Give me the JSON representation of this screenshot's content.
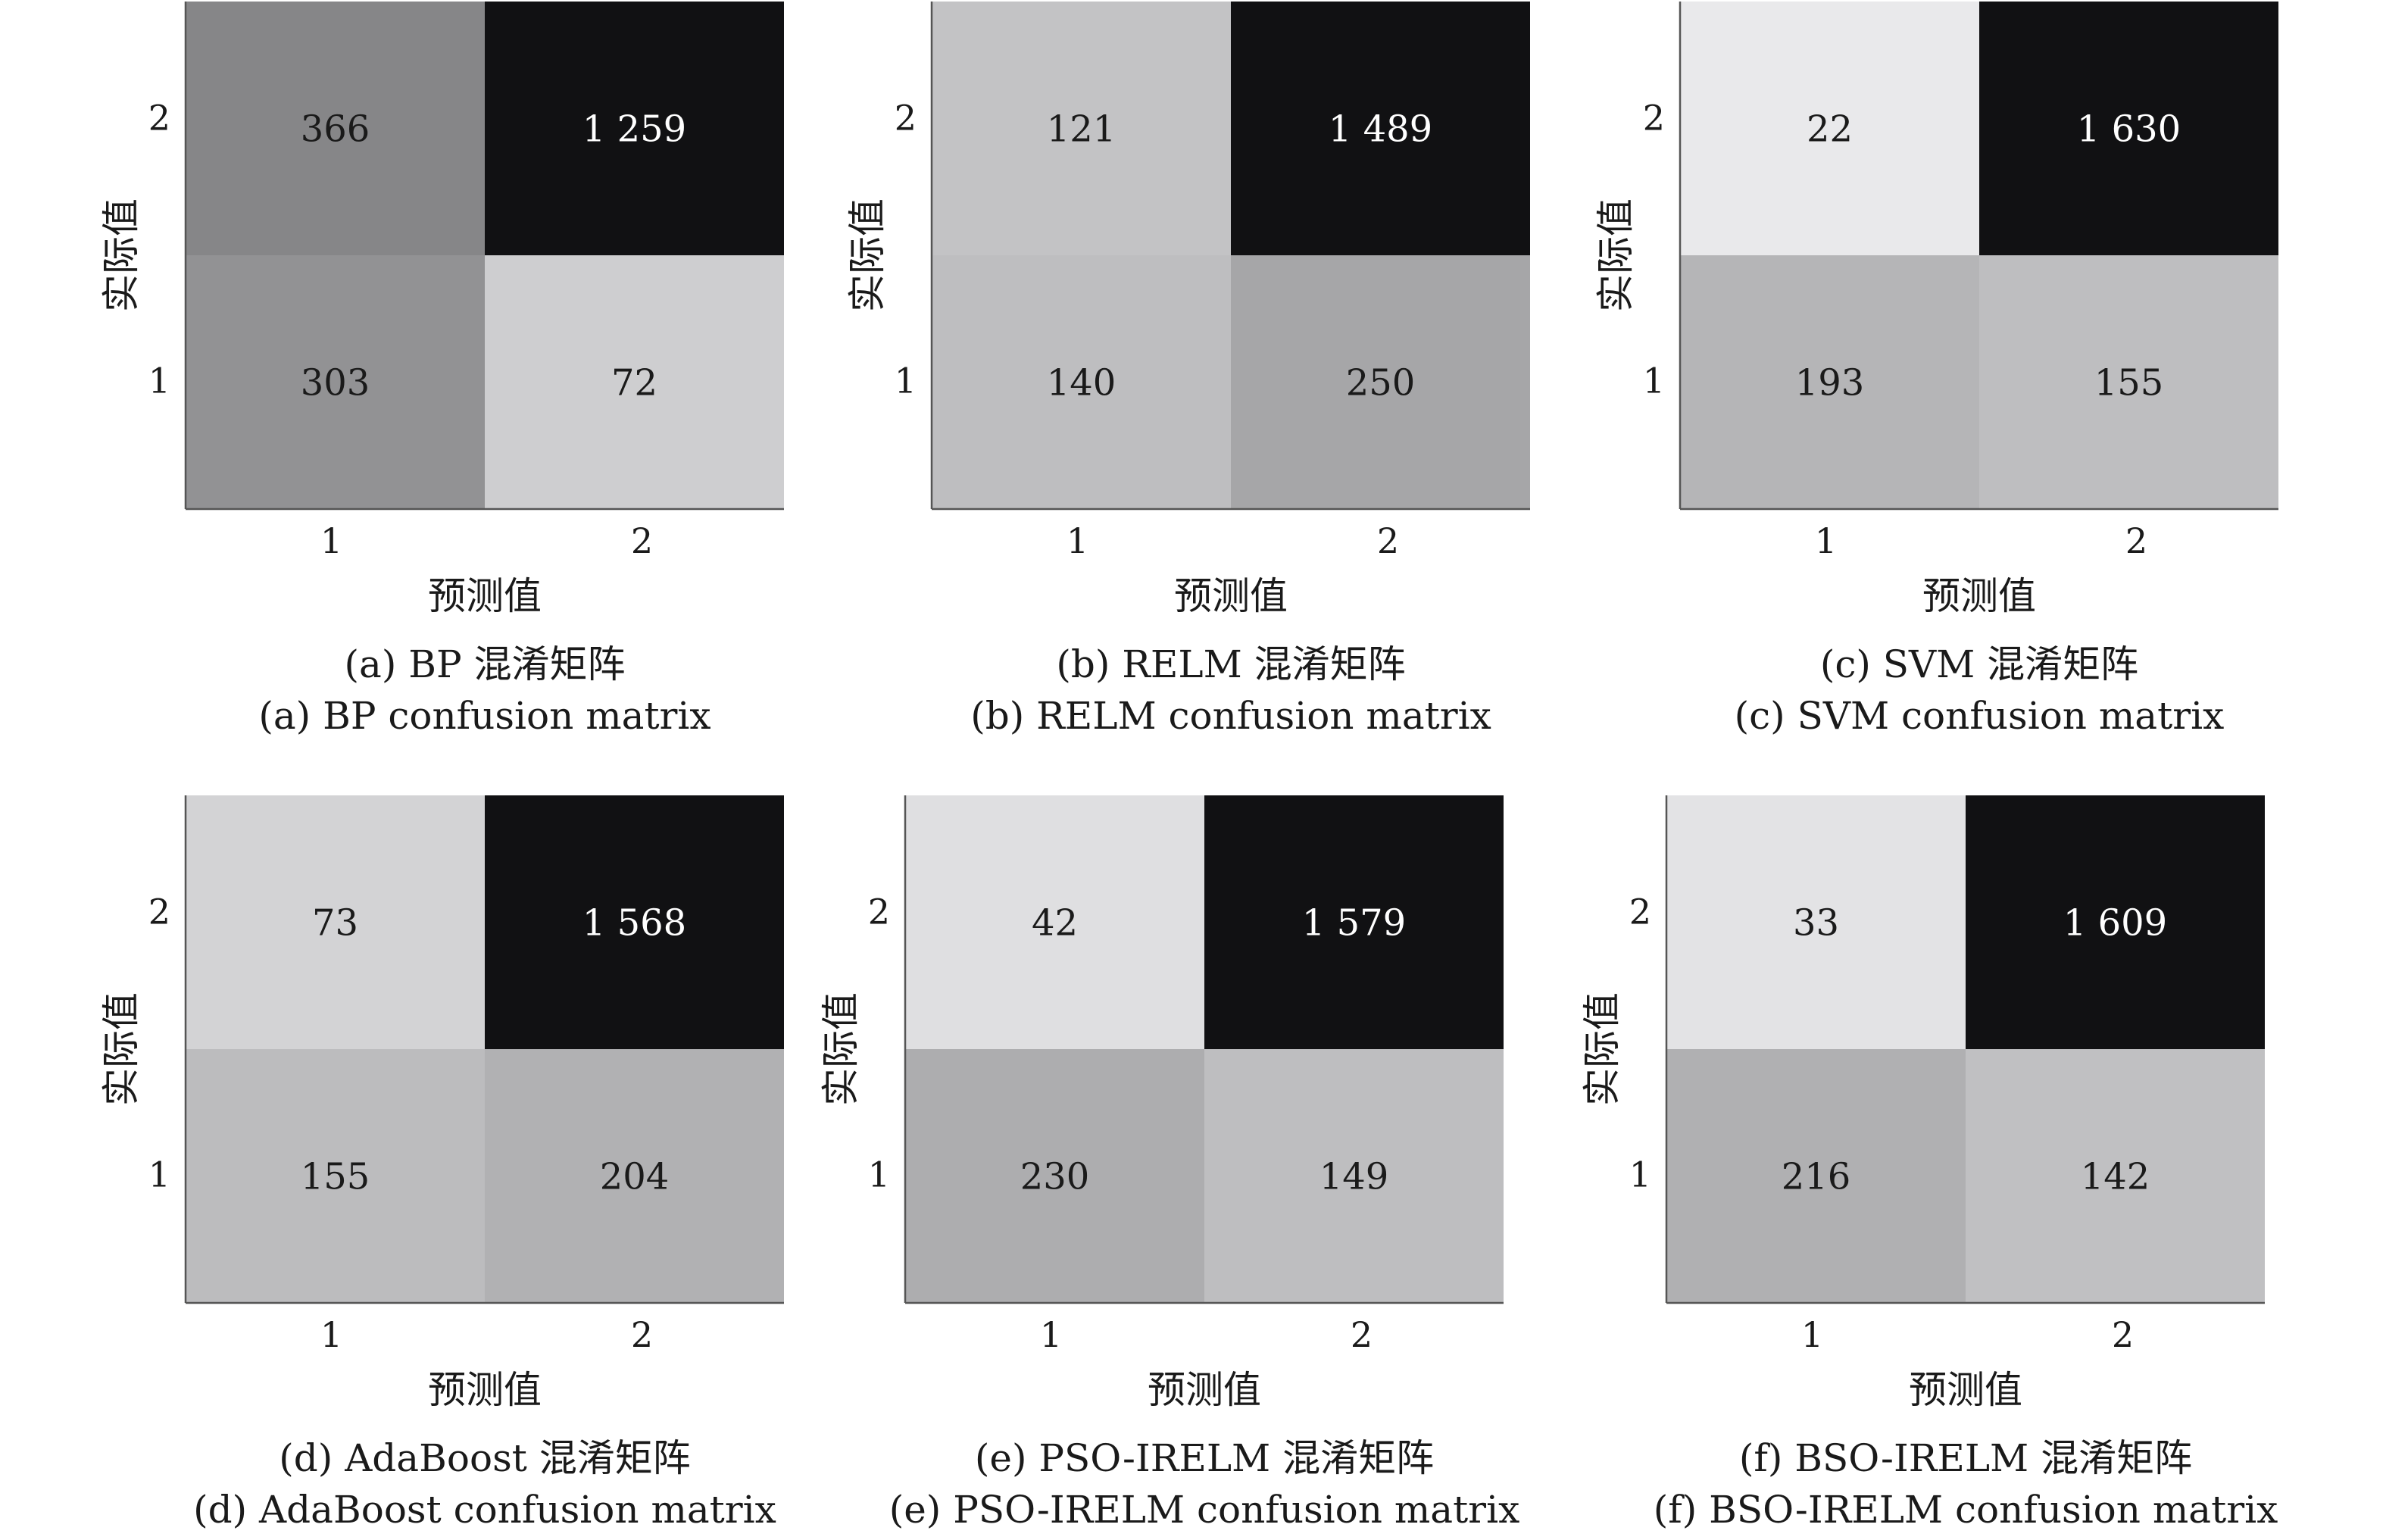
{
  "figure": {
    "shared_xlabel": "预测值",
    "shared_ylabel": "实际值"
  },
  "chart_data": [
    {
      "type": "heatmap",
      "caption_cn": "(a) BP 混淆矩阵",
      "caption_en": "(a) BP confusion matrix",
      "xlabel": "预测值",
      "ylabel": "实际值",
      "x_ticks": [
        "1",
        "2"
      ],
      "y_ticks": [
        "2",
        "1"
      ],
      "cells": [
        [
          366,
          1259
        ],
        [
          303,
          72
        ]
      ],
      "cell_labels": [
        [
          "366",
          "1 259"
        ],
        [
          "303",
          "72"
        ]
      ]
    },
    {
      "type": "heatmap",
      "caption_cn": "(b) RELM 混淆矩阵",
      "caption_en": "(b) RELM confusion matrix",
      "xlabel": "预测值",
      "ylabel": "实际值",
      "x_ticks": [
        "1",
        "2"
      ],
      "y_ticks": [
        "2",
        "1"
      ],
      "cells": [
        [
          121,
          1489
        ],
        [
          140,
          250
        ]
      ],
      "cell_labels": [
        [
          "121",
          "1 489"
        ],
        [
          "140",
          "250"
        ]
      ]
    },
    {
      "type": "heatmap",
      "caption_cn": "(c) SVM 混淆矩阵",
      "caption_en": "(c) SVM confusion matrix",
      "xlabel": "预测值",
      "ylabel": "实际值",
      "x_ticks": [
        "1",
        "2"
      ],
      "y_ticks": [
        "2",
        "1"
      ],
      "cells": [
        [
          22,
          1630
        ],
        [
          193,
          155
        ]
      ],
      "cell_labels": [
        [
          "22",
          "1 630"
        ],
        [
          "193",
          "155"
        ]
      ]
    },
    {
      "type": "heatmap",
      "caption_cn": "(d) AdaBoost 混淆矩阵",
      "caption_en": "(d) AdaBoost confusion matrix",
      "xlabel": "预测值",
      "ylabel": "实际值",
      "x_ticks": [
        "1",
        "2"
      ],
      "y_ticks": [
        "2",
        "1"
      ],
      "cells": [
        [
          73,
          1568
        ],
        [
          155,
          204
        ]
      ],
      "cell_labels": [
        [
          "73",
          "1 568"
        ],
        [
          "155",
          "204"
        ]
      ]
    },
    {
      "type": "heatmap",
      "caption_cn": "(e) PSO-IRELM 混淆矩阵",
      "caption_en": "(e) PSO-IRELM confusion matrix",
      "xlabel": "预测值",
      "ylabel": "实际值",
      "x_ticks": [
        "1",
        "2"
      ],
      "y_ticks": [
        "2",
        "1"
      ],
      "cells": [
        [
          42,
          1579
        ],
        [
          230,
          149
        ]
      ],
      "cell_labels": [
        [
          "42",
          "1 579"
        ],
        [
          "230",
          "149"
        ]
      ]
    },
    {
      "type": "heatmap",
      "caption_cn": "(f) BSO-IRELM 混淆矩阵",
      "caption_en": "(f) BSO-IRELM confusion matrix",
      "xlabel": "预测值",
      "ylabel": "实际值",
      "x_ticks": [
        "1",
        "2"
      ],
      "y_ticks": [
        "2",
        "1"
      ],
      "cells": [
        [
          33,
          1609
        ],
        [
          216,
          142
        ]
      ],
      "cell_labels": [
        [
          "33",
          "1 609"
        ],
        [
          "216",
          "142"
        ]
      ]
    }
  ],
  "colors": {
    "background": "#ffffff",
    "axis": "#555555",
    "text_dark": "#1a1a1a",
    "text_light": "#ffffff",
    "scale_low": "#ffffff",
    "scale_high": "#111111"
  }
}
